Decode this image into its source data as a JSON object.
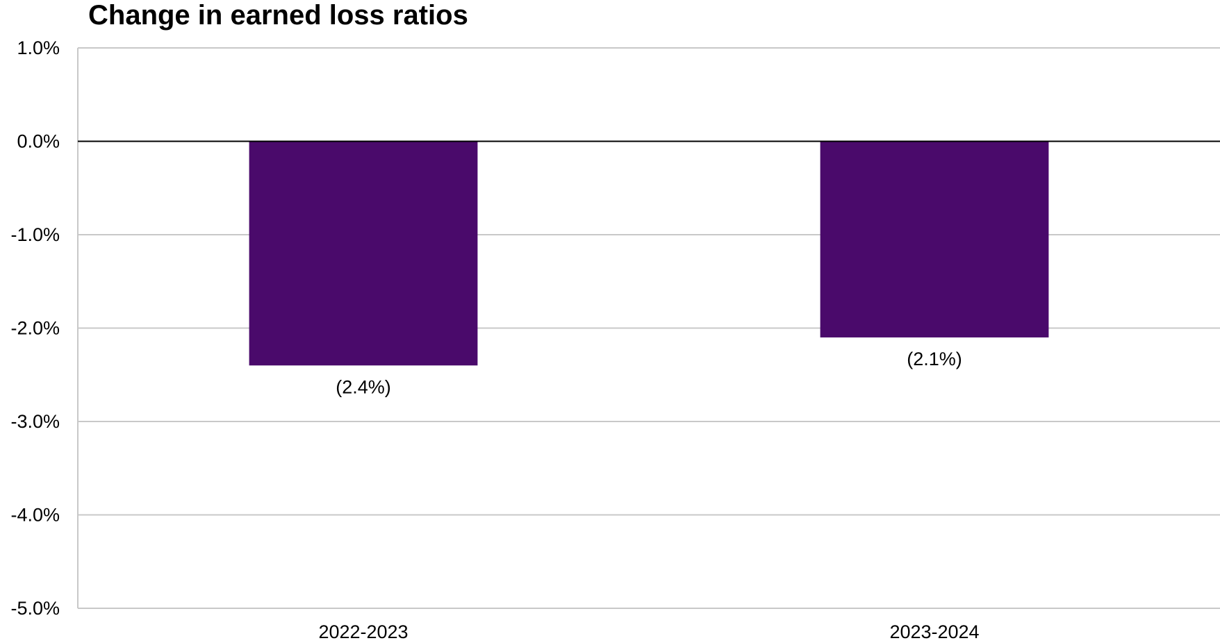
{
  "chart_data": {
    "type": "bar",
    "title": "Change in earned loss ratios",
    "xlabel": "",
    "ylabel": "",
    "categories": [
      "2022-2023",
      "2023-2024"
    ],
    "values": [
      -2.4,
      -2.1
    ],
    "data_labels": [
      "(2.4%)",
      "(2.1%)"
    ],
    "ylim": [
      -5.0,
      1.0
    ],
    "yticks": [
      1.0,
      0.0,
      -1.0,
      -2.0,
      -3.0,
      -4.0,
      -5.0
    ],
    "ytick_labels": [
      "1.0%",
      "0.0%",
      "-1.0%",
      "-2.0%",
      "-3.0%",
      "-4.0%",
      "-5.0%"
    ],
    "grid": true,
    "legend": "none",
    "bar_color": "#4a0a6b",
    "gridline_color": "#c8c8c8",
    "zero_line_color": "#000000"
  }
}
